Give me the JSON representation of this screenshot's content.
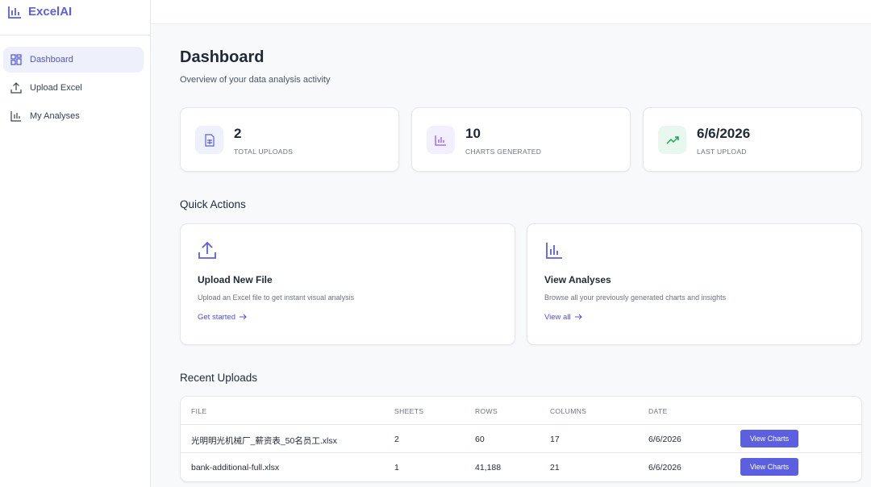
{
  "sidebar": {
    "logo": "ExcelAI",
    "nav": [
      "Dashboard",
      "Upload Excel",
      "My Analyses"
    ]
  },
  "header": {
    "title": "Dashboard",
    "subtitle": "Overview of your data analysis activity"
  },
  "stats": [
    {
      "value": "2",
      "label": "TOTAL UPLOADS"
    },
    {
      "value": "10",
      "label": "CHARTS GENERATED"
    },
    {
      "value": "6/6/2026",
      "label": "LAST UPLOAD"
    }
  ],
  "quick_actions": {
    "title": "Quick Actions",
    "cards": [
      {
        "title": "Upload New File",
        "description": "Upload an Excel file to get instant visual analysis",
        "link": "Get started"
      },
      {
        "title": "View Analyses",
        "description": "Browse all your previously generated charts and insights",
        "link": "View all"
      }
    ]
  },
  "recent": {
    "title": "Recent Uploads"
  },
  "table": {
    "headers": [
      "FILE",
      "SHEETS",
      "ROWS",
      "COLUMNS",
      "DATE"
    ],
    "rows": [
      [
        "光明明光机械厂_薪资表_50名员工.xlsx",
        "2",
        "60",
        "17",
        "6/6/2026"
      ],
      [
        "bank-additional-full.xlsx",
        "1",
        "41,188",
        "21",
        "6/6/2026"
      ]
    ],
    "action": "View Charts"
  }
}
